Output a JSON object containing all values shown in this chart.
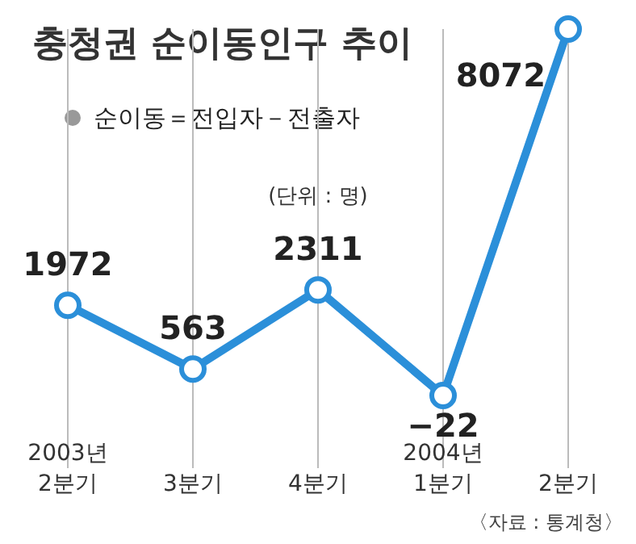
{
  "chart_data": {
    "type": "line",
    "title": "충청권 순이동인구 추이",
    "subtitle": "순이동＝전입자－전출자",
    "categories": [
      "2003년\n2분기",
      "3분기",
      "4분기",
      "2004년\n1분기",
      "2분기"
    ],
    "series": [
      {
        "color": "#2b8fd9",
        "values": [
          1972,
          563,
          2311,
          -22,
          8072
        ]
      }
    ],
    "data_labels": true,
    "marker": "circle",
    "grid": "x",
    "annotations": [
      "(단위 : 명)",
      "〈자료 : 통계청〉"
    ]
  }
}
